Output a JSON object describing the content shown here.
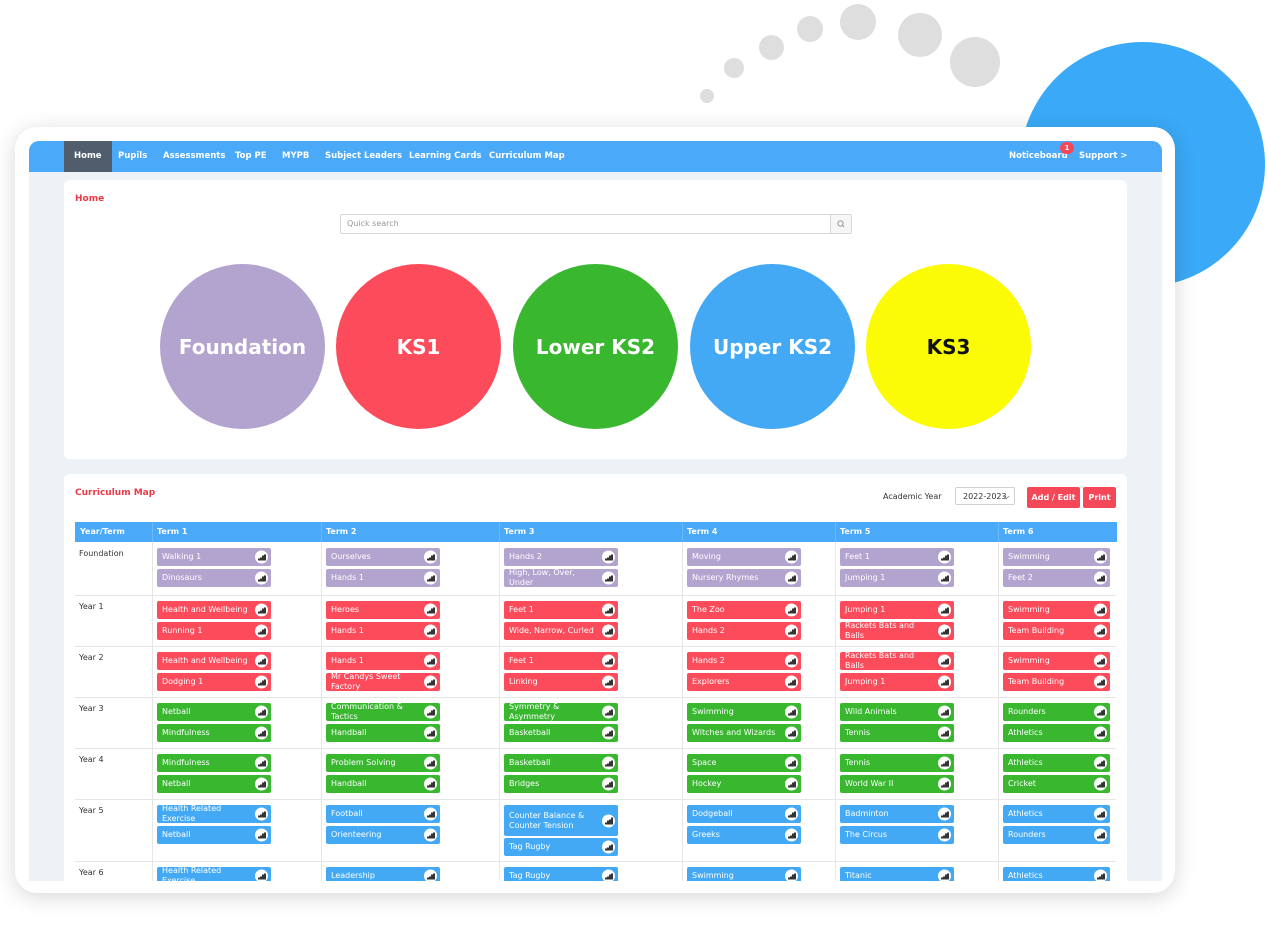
{
  "nav": {
    "items": [
      "Home",
      "Pupils",
      "Assessments",
      "Top PE",
      "MYPB",
      "Subject Leaders",
      "Learning Cards",
      "Curriculum Map"
    ],
    "noticeboard": "Noticeboard",
    "badge_count": "1",
    "support": "Support >"
  },
  "home": {
    "title": "Home",
    "search_placeholder": "Quick search",
    "stages": [
      {
        "label": "Foundation",
        "color": "#b3a3cf"
      },
      {
        "label": "KS1",
        "color": "#fc4b5b"
      },
      {
        "label": "Lower KS2",
        "color": "#38b72f"
      },
      {
        "label": "Upper KS2",
        "color": "#43a9f5"
      },
      {
        "label": "KS3",
        "color": "#fbfb05"
      }
    ]
  },
  "curriculum": {
    "title": "Curriculum Map",
    "academic_year_label": "Academic Year",
    "academic_year": "2022-2023",
    "add_edit": "Add / Edit",
    "print": "Print",
    "headers": [
      "Year/Term",
      "Term 1",
      "Term 2",
      "Term 3",
      "Term 4",
      "Term 5",
      "Term 6"
    ],
    "colors": {
      "foundation": "#b3a3cf",
      "ks1": "#fc4b5b",
      "lower_ks2": "#38b72f",
      "upper_ks2": "#43a9f5"
    },
    "rows": [
      {
        "year": "Foundation",
        "terms": [
          [
            "Walking 1",
            "Dinosaurs"
          ],
          [
            "Ourselves",
            "Hands 1"
          ],
          [
            "Hands 2",
            "High, Low, Over, Under"
          ],
          [
            "Moving",
            "Nursery Rhymes"
          ],
          [
            "Feet 1",
            "Jumping 1"
          ],
          [
            "Swimming",
            "Feet 2"
          ]
        ]
      },
      {
        "year": "Year 1",
        "terms": [
          [
            "Health and Wellbeing",
            "Running 1"
          ],
          [
            "Heroes",
            "Hands 1"
          ],
          [
            "Feet 1",
            "Wide, Narrow, Curled"
          ],
          [
            "The Zoo",
            "Hands 2"
          ],
          [
            "Jumping 1",
            "Rackets Bats and Balls"
          ],
          [
            "Swimming",
            "Team Building"
          ]
        ]
      },
      {
        "year": "Year 2",
        "terms": [
          [
            "Health and Wellbeing",
            "Dodging 1"
          ],
          [
            "Hands 1",
            "Mr Candys Sweet Factory"
          ],
          [
            "Feet 1",
            "Linking"
          ],
          [
            "Hands 2",
            "Explorers"
          ],
          [
            "Rackets Bats and Balls",
            "Jumping 1"
          ],
          [
            "Swimming",
            "Team Building"
          ]
        ]
      },
      {
        "year": "Year 3",
        "terms": [
          [
            "Netball",
            "Mindfulness"
          ],
          [
            "Communication & Tactics",
            "Handball"
          ],
          [
            "Symmetry & Asymmetry",
            "Basketball"
          ],
          [
            "Swimming",
            "Witches and Wizards"
          ],
          [
            "Wild Animals",
            "Tennis"
          ],
          [
            "Rounders",
            "Athletics"
          ]
        ]
      },
      {
        "year": "Year 4",
        "terms": [
          [
            "Mindfulness",
            "Netball"
          ],
          [
            "Problem Solving",
            "Handball"
          ],
          [
            "Basketball",
            "Bridges"
          ],
          [
            "Space",
            "Hockey"
          ],
          [
            "Tennis",
            "World War II"
          ],
          [
            "Athletics",
            "Cricket"
          ]
        ]
      },
      {
        "year": "Year 5",
        "terms": [
          [
            "Health Related Exercise",
            "Netball"
          ],
          [
            "Football",
            "Orienteering"
          ],
          [
            "Counter Balance & Counter Tension",
            "Tag Rugby"
          ],
          [
            "Dodgeball",
            "Greeks"
          ],
          [
            "Badminton",
            "The Circus"
          ],
          [
            "Athletics",
            "Rounders"
          ]
        ]
      },
      {
        "year": "Year 6",
        "terms": [
          [
            "Health Related Exercise"
          ],
          [
            "Leadership"
          ],
          [
            "Tag Rugby"
          ],
          [
            "Swimming"
          ],
          [
            "Titanic"
          ],
          [
            "Athletics"
          ]
        ]
      }
    ]
  }
}
